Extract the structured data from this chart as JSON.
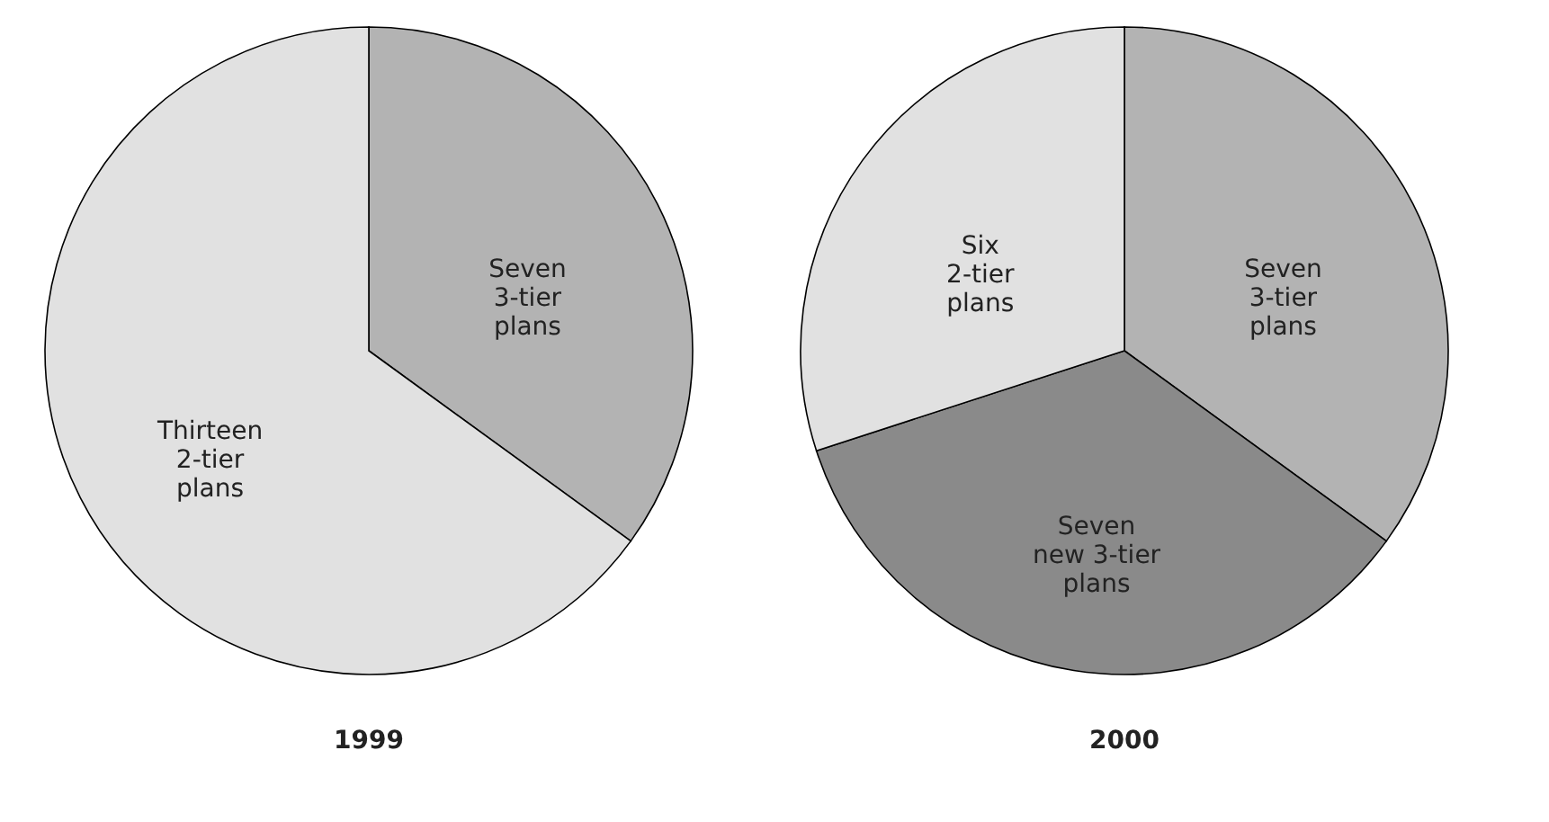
{
  "chart_data": [
    {
      "type": "pie",
      "title": "1999",
      "categories": [
        "Seven\n3-tier\nplans",
        "Thirteen\n2-tier\nplans"
      ],
      "values": [
        35,
        65
      ],
      "colors": [
        "#b3b3b3",
        "#e1e1e1"
      ]
    },
    {
      "type": "pie",
      "title": "2000",
      "categories": [
        "Seven\n3-tier\nplans",
        "Seven\nnew 3-tier\nplans",
        "Six\n2-tier\nplans"
      ],
      "values": [
        35,
        35,
        30
      ],
      "colors": [
        "#b3b3b3",
        "#8a8a8a",
        "#e1e1e1"
      ]
    }
  ]
}
